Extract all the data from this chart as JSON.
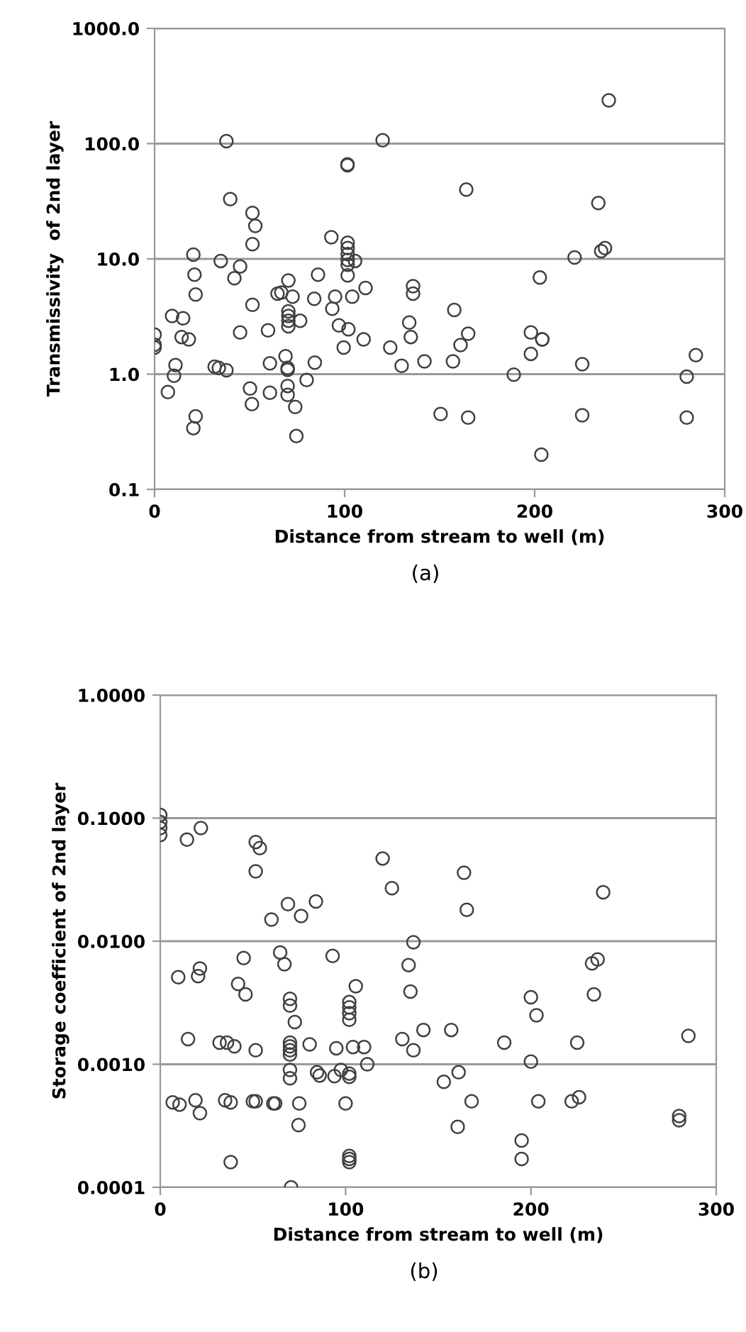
{
  "chart_data": [
    {
      "type": "scatter",
      "xlabel": "Distance from stream to well (m)",
      "ylabel": "Transmissivity  of 2nd layer",
      "annotations": [
        "(a)"
      ],
      "log": "y",
      "grid": "y",
      "marker": "circle",
      "xlim": [
        0,
        300
      ],
      "xticks": [
        0,
        100,
        200,
        300
      ],
      "ylim": [
        0.1,
        1000
      ],
      "yticks": [
        {
          "value": 0.1,
          "label": "0.1"
        },
        {
          "value": 1,
          "label": "1.0"
        },
        {
          "value": 10,
          "label": "10.0"
        },
        {
          "value": 100,
          "label": "100.0"
        },
        {
          "value": 1000,
          "label": "1000.0"
        }
      ],
      "series": [
        {
          "color": "#404040",
          "x": [
            37.8,
            120,
            101.5,
            101.5,
            39.8,
            51.5,
            53,
            51.5,
            93,
            101.6,
            101.6,
            101.6,
            101.6,
            101.6,
            105.5,
            101.6,
            20.4,
            34.8,
            45,
            21,
            42,
            86,
            70.4,
            111,
            21.6,
            64.7,
            66.7,
            72.6,
            84,
            95,
            104,
            136,
            136,
            51.5,
            93.5,
            70.4,
            70.4,
            70.4,
            70.4,
            76.6,
            9.2,
            15,
            97,
            102,
            134,
            134.8,
            110,
            59.7,
            45,
            14.2,
            18,
            0,
            0,
            0,
            99.5,
            124,
            11,
            10.2,
            31.6,
            33.8,
            37.8,
            60.7,
            68.9,
            70,
            70,
            84.3,
            130,
            142,
            7,
            50.2,
            51.2,
            60.7,
            70,
            70,
            80,
            74,
            21.6,
            20.4,
            74.6,
            239,
            164,
            233.5,
            221,
            235,
            237,
            202.7,
            157.7,
            165,
            161,
            157,
            198,
            204,
            204,
            198,
            189,
            225,
            284.8,
            280,
            150.5,
            165,
            225,
            280,
            203.5
          ],
          "values": [
            105,
            107,
            66,
            65,
            33,
            25,
            19.3,
            13.4,
            15.4,
            13.8,
            12.4,
            11,
            9.8,
            8.9,
            9.6,
            7.2,
            10.9,
            9.6,
            8.6,
            7.3,
            6.8,
            7.3,
            6.5,
            5.6,
            4.9,
            5.0,
            5.1,
            4.7,
            4.5,
            4.7,
            4.7,
            5.8,
            5.0,
            4.0,
            3.7,
            3.5,
            3.2,
            2.9,
            2.6,
            2.9,
            3.2,
            3.05,
            2.65,
            2.45,
            2.8,
            2.1,
            2.0,
            2.4,
            2.3,
            2.1,
            2.0,
            2.2,
            1.8,
            1.7,
            1.7,
            1.7,
            1.2,
            0.97,
            1.16,
            1.13,
            1.08,
            1.24,
            1.43,
            1.13,
            1.09,
            1.26,
            1.18,
            1.29,
            0.7,
            0.75,
            0.55,
            0.69,
            0.79,
            0.66,
            0.89,
            0.52,
            0.43,
            0.34,
            0.29,
            237,
            40,
            30.5,
            10.3,
            11.7,
            12.4,
            6.9,
            3.6,
            2.24,
            1.79,
            1.29,
            2.3,
            2.0,
            2.0,
            1.5,
            0.99,
            1.22,
            1.46,
            0.95,
            0.45,
            0.42,
            0.44,
            0.42,
            0.2
          ]
        }
      ]
    },
    {
      "type": "scatter",
      "xlabel": "Distance from stream to well (m)",
      "ylabel": "Storage coefficient of 2nd layer",
      "annotations": [
        "(b)"
      ],
      "log": "y",
      "grid": "y",
      "marker": "circle",
      "xlim": [
        0,
        300
      ],
      "xticks": [
        0,
        100,
        200,
        300
      ],
      "ylim": [
        0.0001,
        1
      ],
      "yticks": [
        {
          "value": 0.0001,
          "label": "0.0001"
        },
        {
          "value": 0.001,
          "label": "0.0010"
        },
        {
          "value": 0.01,
          "label": "0.0100"
        },
        {
          "value": 0.1,
          "label": "0.1000"
        },
        {
          "value": 1,
          "label": "1.0000"
        }
      ],
      "series": [
        {
          "color": "#404040",
          "x": [
            0,
            0,
            0,
            0,
            14.4,
            21.9,
            51.5,
            53.7,
            51.5,
            120,
            125,
            68.9,
            84,
            60,
            76,
            136.6,
            45,
            64.7,
            67,
            93,
            134,
            21.4,
            20.4,
            9.7,
            42,
            46,
            135,
            105.5,
            70,
            70,
            102,
            102,
            102,
            102,
            72.6,
            142,
            130.6,
            136.6,
            15,
            32,
            36,
            40,
            51.5,
            70,
            70,
            70,
            70,
            80.6,
            95,
            104,
            110,
            111.7,
            70,
            70,
            84.6,
            86,
            94,
            97.5,
            102,
            102,
            6.7,
            10.4,
            19,
            21.4,
            35,
            38,
            50,
            51.5,
            61,
            62,
            75,
            74.6,
            100,
            38,
            102,
            102,
            102,
            70.6,
            163.9,
            165.4,
            239,
            233,
            236,
            234,
            200,
            203,
            157,
            185.6,
            225,
            285,
            200,
            161,
            153,
            168,
            160.5,
            204,
            222,
            226,
            195,
            195,
            280,
            280
          ],
          "values": [
            0.106,
            0.093,
            0.083,
            0.073,
            0.067,
            0.083,
            0.064,
            0.057,
            0.037,
            0.047,
            0.027,
            0.02,
            0.021,
            0.015,
            0.016,
            0.0098,
            0.0073,
            0.0081,
            0.0065,
            0.0076,
            0.0064,
            0.006,
            0.0052,
            0.0051,
            0.0045,
            0.0037,
            0.0039,
            0.0043,
            0.0034,
            0.003,
            0.0032,
            0.0029,
            0.0026,
            0.0023,
            0.0022,
            0.0019,
            0.0016,
            0.0013,
            0.0016,
            0.0015,
            0.0015,
            0.0014,
            0.0013,
            0.0015,
            0.0014,
            0.0013,
            0.0012,
            0.00145,
            0.00135,
            0.00138,
            0.00138,
            0.001,
            0.0009,
            0.00077,
            0.00086,
            0.00081,
            0.0008,
            0.0009,
            0.00084,
            0.00079,
            0.00049,
            0.00047,
            0.00051,
            0.0004,
            0.00051,
            0.00049,
            0.0005,
            0.0005,
            0.00048,
            0.00048,
            0.00048,
            0.00032,
            0.00048,
            0.00016,
            0.00018,
            0.00017,
            0.00016,
            0.0001,
            0.036,
            0.018,
            0.025,
            0.0066,
            0.0071,
            0.0037,
            0.0035,
            0.0025,
            0.0019,
            0.0015,
            0.0015,
            0.0017,
            0.00105,
            0.00086,
            0.00072,
            0.0005,
            0.00031,
            0.0005,
            0.0005,
            0.00054,
            0.00024,
            0.00017,
            0.00038,
            0.00035
          ]
        }
      ]
    }
  ]
}
